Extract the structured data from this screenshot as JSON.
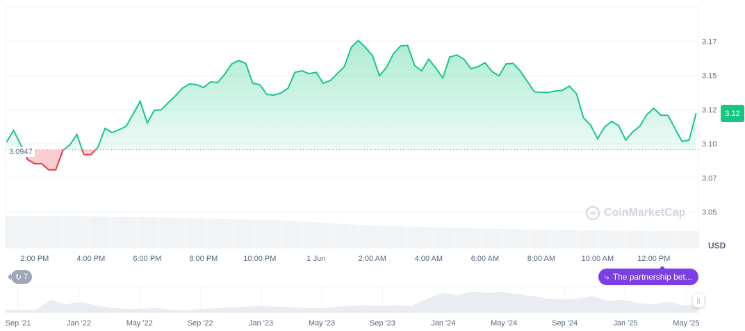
{
  "colors": {
    "up": "#16c784",
    "down": "#ea3943",
    "event": "#7b3fe4",
    "event_count_bg": "#a1a7bb",
    "grid": "#eff2f5",
    "volume": "#eff2f5"
  },
  "chart_data": {
    "type": "area",
    "ylabel": "USD",
    "currency_label": "USD",
    "current_price_label": "3.12",
    "baseline": 3.0947,
    "baseline_label": "3.0947",
    "ylim": [
      3.024,
      3.197
    ],
    "y_ticks": [
      {
        "value": 3.1725,
        "label": "3.17"
      },
      {
        "value": 3.148,
        "label": "3.15"
      },
      {
        "value": 3.1235,
        "label": "3.12"
      },
      {
        "value": 3.099,
        "label": "3.10"
      },
      {
        "value": 3.0745,
        "label": "3.07"
      },
      {
        "value": 3.05,
        "label": "3.05"
      }
    ],
    "x_ticks": [
      {
        "time": "14:00",
        "label": "2:00 PM"
      },
      {
        "time": "16:00",
        "label": "4:00 PM"
      },
      {
        "time": "18:00",
        "label": "6:00 PM"
      },
      {
        "time": "20:00",
        "label": "8:00 PM"
      },
      {
        "time": "22:00",
        "label": "10:00 PM"
      },
      {
        "time": "00:00",
        "label": "1 Jun"
      },
      {
        "time": "02:00",
        "label": "2:00 AM"
      },
      {
        "time": "04:00",
        "label": "4:00 AM"
      },
      {
        "time": "06:00",
        "label": "6:00 AM"
      },
      {
        "time": "08:00",
        "label": "8:00 AM"
      },
      {
        "time": "10:00",
        "label": "10:00 AM"
      },
      {
        "time": "12:00",
        "label": "12:00 PM"
      }
    ],
    "start_time": "12:58",
    "end_time": "13:35",
    "interval_minutes": 15,
    "first_point_time": "13:00",
    "prices": [
      3.1001,
      3.1085,
      3.0986,
      3.0877,
      3.0847,
      3.0847,
      3.0803,
      3.0803,
      3.0941,
      3.0981,
      3.1056,
      3.0912,
      3.0912,
      3.0966,
      3.11,
      3.107,
      3.109,
      3.1115,
      3.1204,
      3.1294,
      3.114,
      3.1229,
      3.1234,
      3.1284,
      3.1333,
      3.1388,
      3.1418,
      3.1413,
      3.1393,
      3.1433,
      3.1428,
      3.1487,
      3.1562,
      3.1586,
      3.1566,
      3.1423,
      3.1413,
      3.1343,
      3.1338,
      3.1353,
      3.1388,
      3.1502,
      3.1512,
      3.1492,
      3.1502,
      3.1423,
      3.1442,
      3.1492,
      3.1542,
      3.1681,
      3.173,
      3.1681,
      3.1621,
      3.1477,
      3.1537,
      3.1636,
      3.169,
      3.1695,
      3.1552,
      3.1512,
      3.1596,
      3.1532,
      3.1462,
      3.1611,
      3.1626,
      3.1596,
      3.1527,
      3.1542,
      3.1571,
      3.1507,
      3.1477,
      3.1562,
      3.1566,
      3.1512,
      3.1438,
      3.1363,
      3.1358,
      3.1358,
      3.1368,
      3.1373,
      3.1403,
      3.1348,
      3.1175,
      3.1125,
      3.1026,
      3.111,
      3.115,
      3.112,
      3.1016,
      3.1075,
      3.1115,
      3.1199,
      3.1244,
      3.1194,
      3.1194,
      3.11,
      3.1006,
      3.1016,
      3.1209
    ],
    "volume_relative": [
      1.0,
      1.0,
      0.98,
      0.96,
      0.93,
      0.89,
      0.86,
      0.77,
      0.7,
      0.66,
      0.62,
      0.59,
      0.57,
      0.55,
      0.53,
      0.53
    ]
  },
  "navigator": {
    "x_ticks": [
      "Sep '21",
      "Jan '22",
      "May '22",
      "Sep '22",
      "Jan '23",
      "May '23",
      "Sep '23",
      "Jan '24",
      "May '24",
      "Sep '24",
      "Jan '25",
      "May '25"
    ],
    "values_relative": [
      0.1,
      0.1,
      0.1,
      0.55,
      0.35,
      0.45,
      0.3,
      0.2,
      0.15,
      0.15,
      0.2,
      0.1,
      0.08,
      0.15,
      0.18,
      0.22,
      0.25,
      0.28,
      0.25,
      0.22,
      0.18,
      0.18,
      0.25,
      0.28,
      0.3,
      0.28,
      0.3,
      0.28,
      0.6,
      0.85,
      0.75,
      0.9,
      0.85,
      0.88,
      0.8,
      0.7,
      0.6,
      0.55,
      0.6,
      0.7,
      0.5,
      0.55,
      0.4,
      0.35,
      0.45,
      0.3,
      0.35
    ]
  },
  "events": {
    "count": "7",
    "count_icon": "history-icon",
    "latest_label": "The partnership bet...",
    "latest_icon": "lightning-icon"
  },
  "watermark": "CoinMarketCap"
}
